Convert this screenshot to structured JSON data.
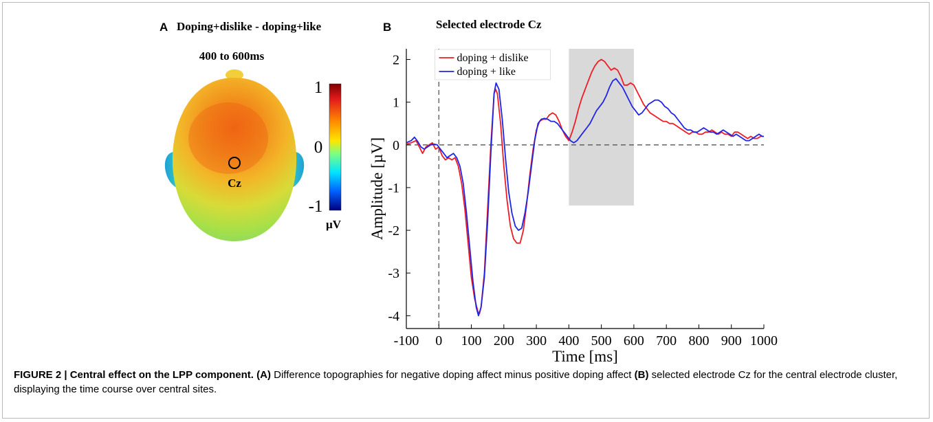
{
  "panelA": {
    "letter": "A",
    "title": "Doping+dislike - doping+like",
    "window_label": "400 to 600ms",
    "electrode_label": "Cz",
    "colorbar": {
      "max_label": "1",
      "mid_label": "0",
      "min_label": "-1",
      "unit": "µV"
    }
  },
  "panelB": {
    "letter": "B",
    "title": "Selected electrode Cz"
  },
  "chart_data": {
    "type": "line",
    "title": "Selected electrode Cz",
    "xlabel": "Time [ms]",
    "ylabel": "Amplitude [µV]",
    "xlim": [
      -100,
      1000
    ],
    "ylim": [
      -4.3,
      2.25
    ],
    "xticks": [
      -100,
      0,
      100,
      200,
      300,
      400,
      500,
      600,
      700,
      800,
      900,
      1000
    ],
    "yticks": [
      -4,
      -3,
      -2,
      -1,
      0,
      1,
      2
    ],
    "xtick_labels": [
      "-100",
      "0",
      "100",
      "200",
      "300",
      "400",
      "500",
      "600",
      "700",
      "800",
      "900",
      "1000"
    ],
    "ytick_labels": [
      "-4",
      "-3",
      "-2",
      "-1",
      "0",
      "1",
      "2"
    ],
    "legend_position": "top-left",
    "shaded_window": {
      "x": [
        400,
        600
      ],
      "y": [
        -1.42,
        2.25
      ],
      "color": "#d9d9d9"
    },
    "zero_lines": {
      "x": 0,
      "y": 0
    },
    "series": [
      {
        "name": "doping + dislike",
        "color": "#ee1c25",
        "points": [
          [
            -100,
            0.02
          ],
          [
            -85,
            0.05
          ],
          [
            -70,
            0.1
          ],
          [
            -60,
            -0.05
          ],
          [
            -50,
            -0.2
          ],
          [
            -40,
            -0.05
          ],
          [
            -30,
            0.0
          ],
          [
            -20,
            0.05
          ],
          [
            -10,
            -0.1
          ],
          [
            0,
            -0.05
          ],
          [
            10,
            -0.25
          ],
          [
            20,
            -0.35
          ],
          [
            30,
            -0.3
          ],
          [
            40,
            -0.35
          ],
          [
            50,
            -0.3
          ],
          [
            60,
            -0.5
          ],
          [
            70,
            -0.9
          ],
          [
            80,
            -1.5
          ],
          [
            90,
            -2.3
          ],
          [
            100,
            -3.1
          ],
          [
            110,
            -3.6
          ],
          [
            120,
            -3.9
          ],
          [
            125,
            -3.95
          ],
          [
            130,
            -3.8
          ],
          [
            140,
            -3.0
          ],
          [
            150,
            -1.5
          ],
          [
            160,
            0.0
          ],
          [
            170,
            1.2
          ],
          [
            175,
            1.3
          ],
          [
            180,
            1.2
          ],
          [
            190,
            0.5
          ],
          [
            200,
            -0.5
          ],
          [
            210,
            -1.3
          ],
          [
            220,
            -1.9
          ],
          [
            230,
            -2.2
          ],
          [
            240,
            -2.3
          ],
          [
            250,
            -2.3
          ],
          [
            260,
            -2.0
          ],
          [
            270,
            -1.4
          ],
          [
            280,
            -0.7
          ],
          [
            290,
            -0.1
          ],
          [
            300,
            0.35
          ],
          [
            310,
            0.55
          ],
          [
            320,
            0.6
          ],
          [
            330,
            0.6
          ],
          [
            340,
            0.7
          ],
          [
            350,
            0.75
          ],
          [
            360,
            0.7
          ],
          [
            370,
            0.55
          ],
          [
            380,
            0.35
          ],
          [
            390,
            0.2
          ],
          [
            400,
            0.1
          ],
          [
            410,
            0.3
          ],
          [
            420,
            0.55
          ],
          [
            430,
            0.85
          ],
          [
            440,
            1.1
          ],
          [
            450,
            1.3
          ],
          [
            460,
            1.5
          ],
          [
            470,
            1.7
          ],
          [
            480,
            1.85
          ],
          [
            490,
            1.95
          ],
          [
            500,
            2.0
          ],
          [
            510,
            1.95
          ],
          [
            520,
            1.85
          ],
          [
            530,
            1.75
          ],
          [
            540,
            1.8
          ],
          [
            550,
            1.75
          ],
          [
            560,
            1.6
          ],
          [
            570,
            1.4
          ],
          [
            580,
            1.4
          ],
          [
            590,
            1.45
          ],
          [
            600,
            1.4
          ],
          [
            610,
            1.25
          ],
          [
            620,
            1.1
          ],
          [
            630,
            0.95
          ],
          [
            640,
            0.85
          ],
          [
            650,
            0.75
          ],
          [
            660,
            0.7
          ],
          [
            670,
            0.65
          ],
          [
            680,
            0.6
          ],
          [
            690,
            0.55
          ],
          [
            700,
            0.55
          ],
          [
            710,
            0.5
          ],
          [
            720,
            0.5
          ],
          [
            730,
            0.45
          ],
          [
            740,
            0.4
          ],
          [
            750,
            0.35
          ],
          [
            760,
            0.3
          ],
          [
            770,
            0.25
          ],
          [
            780,
            0.3
          ],
          [
            790,
            0.3
          ],
          [
            800,
            0.25
          ],
          [
            810,
            0.25
          ],
          [
            820,
            0.3
          ],
          [
            830,
            0.3
          ],
          [
            840,
            0.35
          ],
          [
            850,
            0.3
          ],
          [
            860,
            0.25
          ],
          [
            870,
            0.3
          ],
          [
            880,
            0.25
          ],
          [
            890,
            0.25
          ],
          [
            900,
            0.2
          ],
          [
            910,
            0.3
          ],
          [
            920,
            0.3
          ],
          [
            930,
            0.25
          ],
          [
            940,
            0.2
          ],
          [
            950,
            0.15
          ],
          [
            960,
            0.2
          ],
          [
            970,
            0.15
          ],
          [
            980,
            0.15
          ],
          [
            990,
            0.2
          ],
          [
            1000,
            0.2
          ]
        ]
      },
      {
        "name": "doping + like",
        "color": "#1f24e6",
        "points": [
          [
            -100,
            0.05
          ],
          [
            -85,
            0.1
          ],
          [
            -75,
            0.18
          ],
          [
            -65,
            0.08
          ],
          [
            -55,
            -0.05
          ],
          [
            -45,
            -0.1
          ],
          [
            -35,
            -0.05
          ],
          [
            -25,
            0.0
          ],
          [
            -15,
            0.02
          ],
          [
            -5,
            0.0
          ],
          [
            5,
            -0.1
          ],
          [
            15,
            -0.2
          ],
          [
            25,
            -0.3
          ],
          [
            35,
            -0.25
          ],
          [
            45,
            -0.2
          ],
          [
            55,
            -0.3
          ],
          [
            65,
            -0.5
          ],
          [
            75,
            -0.9
          ],
          [
            85,
            -1.6
          ],
          [
            95,
            -2.4
          ],
          [
            105,
            -3.2
          ],
          [
            115,
            -3.8
          ],
          [
            122,
            -4.0
          ],
          [
            130,
            -3.8
          ],
          [
            140,
            -3.1
          ],
          [
            150,
            -1.8
          ],
          [
            160,
            -0.2
          ],
          [
            170,
            1.2
          ],
          [
            176,
            1.45
          ],
          [
            185,
            1.3
          ],
          [
            195,
            0.6
          ],
          [
            205,
            -0.3
          ],
          [
            215,
            -1.1
          ],
          [
            225,
            -1.6
          ],
          [
            235,
            -1.9
          ],
          [
            245,
            -2.0
          ],
          [
            255,
            -1.95
          ],
          [
            265,
            -1.6
          ],
          [
            275,
            -1.1
          ],
          [
            285,
            -0.5
          ],
          [
            295,
            0.1
          ],
          [
            305,
            0.5
          ],
          [
            315,
            0.6
          ],
          [
            325,
            0.62
          ],
          [
            335,
            0.6
          ],
          [
            345,
            0.55
          ],
          [
            355,
            0.55
          ],
          [
            365,
            0.5
          ],
          [
            375,
            0.4
          ],
          [
            385,
            0.3
          ],
          [
            395,
            0.2
          ],
          [
            405,
            0.1
          ],
          [
            415,
            0.05
          ],
          [
            425,
            0.1
          ],
          [
            435,
            0.2
          ],
          [
            445,
            0.3
          ],
          [
            455,
            0.4
          ],
          [
            465,
            0.5
          ],
          [
            475,
            0.65
          ],
          [
            485,
            0.8
          ],
          [
            495,
            0.9
          ],
          [
            505,
            1.0
          ],
          [
            515,
            1.15
          ],
          [
            525,
            1.35
          ],
          [
            535,
            1.5
          ],
          [
            545,
            1.55
          ],
          [
            555,
            1.45
          ],
          [
            565,
            1.35
          ],
          [
            575,
            1.2
          ],
          [
            585,
            1.05
          ],
          [
            595,
            0.9
          ],
          [
            605,
            0.8
          ],
          [
            615,
            0.7
          ],
          [
            625,
            0.75
          ],
          [
            635,
            0.85
          ],
          [
            645,
            0.95
          ],
          [
            655,
            1.0
          ],
          [
            665,
            1.05
          ],
          [
            675,
            1.05
          ],
          [
            685,
            1.0
          ],
          [
            695,
            0.9
          ],
          [
            705,
            0.85
          ],
          [
            715,
            0.75
          ],
          [
            725,
            0.7
          ],
          [
            735,
            0.6
          ],
          [
            745,
            0.5
          ],
          [
            755,
            0.4
          ],
          [
            765,
            0.35
          ],
          [
            775,
            0.35
          ],
          [
            785,
            0.3
          ],
          [
            795,
            0.3
          ],
          [
            805,
            0.35
          ],
          [
            815,
            0.4
          ],
          [
            825,
            0.35
          ],
          [
            835,
            0.3
          ],
          [
            845,
            0.3
          ],
          [
            855,
            0.25
          ],
          [
            865,
            0.3
          ],
          [
            875,
            0.35
          ],
          [
            885,
            0.3
          ],
          [
            895,
            0.25
          ],
          [
            905,
            0.2
          ],
          [
            915,
            0.25
          ],
          [
            925,
            0.2
          ],
          [
            935,
            0.15
          ],
          [
            945,
            0.1
          ],
          [
            955,
            0.1
          ],
          [
            965,
            0.15
          ],
          [
            975,
            0.2
          ],
          [
            985,
            0.25
          ],
          [
            995,
            0.2
          ],
          [
            1000,
            0.2
          ]
        ]
      }
    ]
  },
  "caption": {
    "label": "FIGURE 2 | Central effect on the LPP component.",
    "part_a_marker": "(A)",
    "part_a_text": " Difference topographies for negative doping affect minus positive doping affect ",
    "part_b_marker": "(B)",
    "part_b_text": " selected electrode Cz for the central electrode cluster, displaying the time course over central sites."
  }
}
